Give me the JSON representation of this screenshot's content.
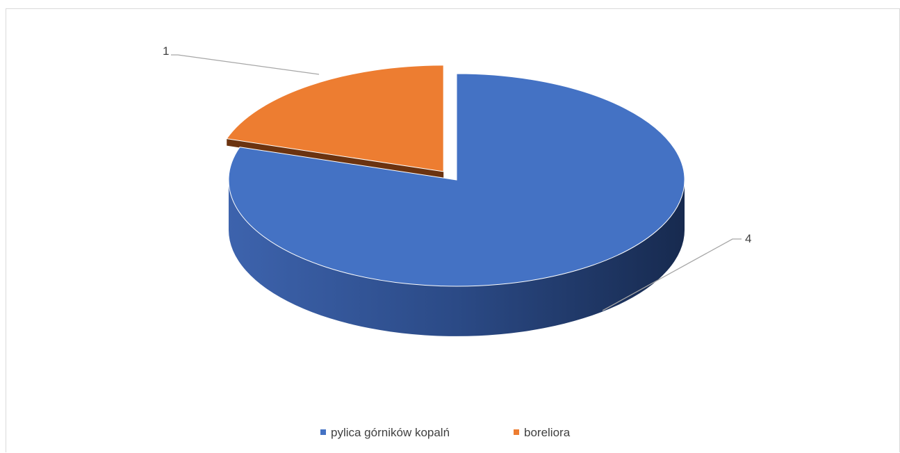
{
  "chart_data": {
    "type": "pie",
    "style": "3d-exploded",
    "categories": [
      "pylica górników kopalń",
      "boreliora"
    ],
    "values": [
      4,
      1
    ],
    "data_labels": [
      "4",
      "1"
    ],
    "colors": [
      "#4472C4",
      "#ED7D31"
    ],
    "legend_position": "bottom"
  }
}
